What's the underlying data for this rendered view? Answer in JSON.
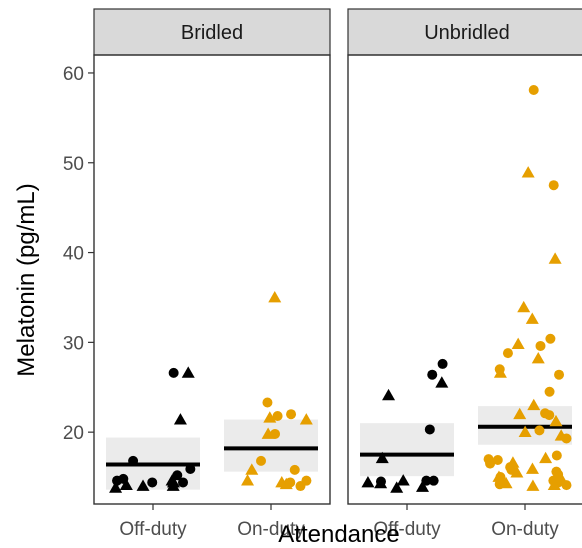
{
  "chart_data": {
    "type": "scatter",
    "xlabel": "Attendance",
    "ylabel": "Melatonin (pg/mL)",
    "ylim": [
      12,
      62
    ],
    "yticks": [
      20,
      30,
      40,
      50,
      60
    ],
    "categories": [
      "Off-duty",
      "On-duty"
    ],
    "panels": [
      "Bridled",
      "Unbridled"
    ],
    "colors": {
      "Off-duty": "#000000",
      "On-duty": "#E69F00",
      "band": "#ebebeb",
      "mean": "#000000"
    },
    "series": [
      {
        "panel": "Bridled",
        "category": "Off-duty",
        "mean": 16.4,
        "ci": [
          13.6,
          19.4
        ],
        "circles": [
          26.6,
          14.4,
          14.8,
          15.2,
          14.4,
          14.6,
          16.8,
          15.9
        ],
        "triangles": [
          26.6,
          21.4,
          14.0,
          13.8,
          14.1,
          14.0,
          14.4,
          14.6
        ]
      },
      {
        "panel": "Bridled",
        "category": "On-duty",
        "mean": 18.2,
        "ci": [
          15.6,
          21.4
        ],
        "circles": [
          23.3,
          21.8,
          22.0,
          19.8,
          16.8,
          15.8,
          14.0,
          14.4,
          14.6
        ],
        "triangles": [
          35.0,
          21.6,
          21.4,
          19.8,
          15.8,
          14.4,
          14.6,
          14.2
        ]
      },
      {
        "panel": "Unbridled",
        "category": "Off-duty",
        "mean": 17.5,
        "ci": [
          15.1,
          21.0
        ],
        "circles": [
          26.4,
          27.6,
          20.3,
          14.6,
          14.6,
          14.5
        ],
        "triangles": [
          24.1,
          25.5,
          17.1,
          14.3,
          13.8,
          14.6,
          13.9,
          14.4
        ]
      },
      {
        "panel": "Unbridled",
        "category": "On-duty",
        "mean": 20.6,
        "ci": [
          18.6,
          22.9
        ],
        "circles": [
          58.1,
          47.5,
          30.4,
          29.6,
          28.8,
          27.0,
          26.4,
          24.5,
          22.1,
          21.9,
          20.2,
          19.3,
          17.4,
          17.0,
          16.9,
          16.5,
          16.1,
          15.8,
          15.6,
          15.3,
          15.0,
          14.6,
          14.4,
          14.2,
          14.1
        ],
        "triangles": [
          48.9,
          39.3,
          33.9,
          32.6,
          29.8,
          28.2,
          26.6,
          23.0,
          22.0,
          21.2,
          20.0,
          19.6,
          17.1,
          16.6,
          15.9,
          15.5,
          15.0,
          14.8,
          14.3,
          14.1,
          14.0
        ]
      }
    ]
  }
}
